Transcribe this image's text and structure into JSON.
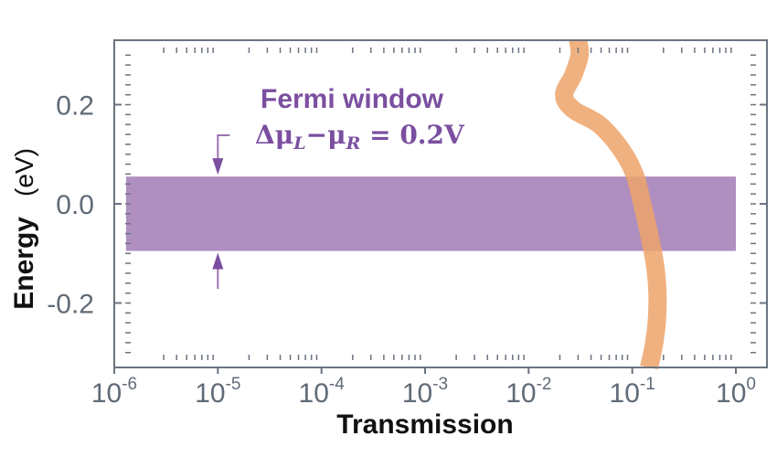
{
  "chart_data": {
    "type": "line",
    "xlabel": "Transmission",
    "ylabel": "Energy",
    "yunit": "(eV)",
    "xscale": "log",
    "xlim": [
      1e-06,
      1
    ],
    "ylim": [
      -0.33,
      0.33
    ],
    "x_tick_labels": [
      {
        "base": "10",
        "exp": "-6",
        "value": 1e-06
      },
      {
        "base": "10",
        "exp": "-5",
        "value": 1e-05
      },
      {
        "base": "10",
        "exp": "-4",
        "value": 0.0001
      },
      {
        "base": "10",
        "exp": "-3",
        "value": 0.001
      },
      {
        "base": "10",
        "exp": "-2",
        "value": 0.01
      },
      {
        "base": "10",
        "exp": "-1",
        "value": 0.1
      },
      {
        "base": "10",
        "exp": "0",
        "value": 1
      }
    ],
    "y_tick_labels": [
      {
        "label": "0.2",
        "value": 0.2
      },
      {
        "label": "0.0",
        "value": 0.0
      },
      {
        "label": "-0.2",
        "value": -0.2
      }
    ],
    "series": [
      {
        "color": "#eda36a",
        "points": [
          {
            "x": 0.03,
            "y": 0.33
          },
          {
            "x": 0.031,
            "y": 0.3
          },
          {
            "x": 0.027,
            "y": 0.26
          },
          {
            "x": 0.022,
            "y": 0.22
          },
          {
            "x": 0.027,
            "y": 0.19
          },
          {
            "x": 0.048,
            "y": 0.16
          },
          {
            "x": 0.078,
            "y": 0.11
          },
          {
            "x": 0.105,
            "y": 0.06
          },
          {
            "x": 0.125,
            "y": 0.0
          },
          {
            "x": 0.145,
            "y": -0.06
          },
          {
            "x": 0.165,
            "y": -0.12
          },
          {
            "x": 0.175,
            "y": -0.18
          },
          {
            "x": 0.172,
            "y": -0.24
          },
          {
            "x": 0.16,
            "y": -0.29
          },
          {
            "x": 0.145,
            "y": -0.33
          }
        ]
      }
    ],
    "fermi_window": {
      "title": "Fermi window",
      "equation_delta": "Δ",
      "equation_mu1": "μ",
      "equation_sub1": "L",
      "equation_minus": "−",
      "equation_mu2": "μ",
      "equation_sub2": "R",
      "equation_rhs": " = 0.2V",
      "ymin": -0.095,
      "ymax": 0.055,
      "xmin": 1.3e-06,
      "xmax": 1,
      "color": "#9b72b0",
      "arrow_x": 1e-05
    },
    "grid": false,
    "legend": "none"
  }
}
